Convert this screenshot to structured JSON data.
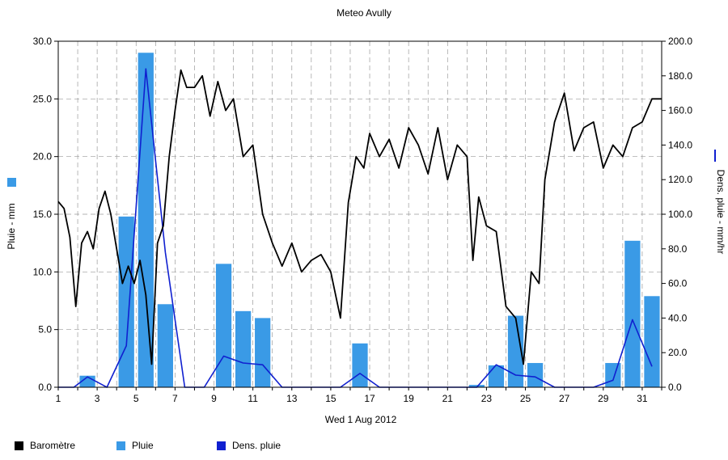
{
  "title": "Meteo  Avully",
  "xlabel": "Wed 1 Aug 2012",
  "ylabel_left": "Pluie - mm",
  "ylabel_right": "Dens. pluie - mm/hr",
  "legend": [
    {
      "label": "Baromètre",
      "color": "#000000"
    },
    {
      "label": "Pluie",
      "color": "#3a9ae6"
    },
    {
      "label": "Dens. pluie",
      "color": "#1020d0"
    }
  ],
  "chart_data": {
    "type": "bar",
    "title": "Meteo  Avully",
    "xlabel": "Wed 1 Aug 2012",
    "x_range": [
      1,
      32
    ],
    "x_ticks": [
      "1",
      "3",
      "5",
      "7",
      "9",
      "11",
      "13",
      "15",
      "17",
      "19",
      "21",
      "23",
      "25",
      "27",
      "29",
      "31"
    ],
    "ylabel_left": "Pluie - mm",
    "ylim_left": [
      0,
      30
    ],
    "yticks_left": [
      "0.0",
      "5.0",
      "10.0",
      "15.0",
      "20.0",
      "25.0",
      "30.0"
    ],
    "ylabel_right": "Dens. pluie - mm/hr",
    "ylim_right": [
      0,
      200
    ],
    "yticks_right": [
      "0.0",
      "20.0",
      "40.0",
      "60.0",
      "80.0",
      "100.0",
      "120.0",
      "140.0",
      "160.0",
      "180.0",
      "200.0"
    ],
    "grid": true,
    "legend_position": "bottom",
    "series": [
      {
        "name": "Pluie",
        "type": "bar",
        "axis": "left",
        "color": "#3a9ae6",
        "x": [
          2.5,
          4.5,
          5.5,
          6.5,
          9.5,
          10.5,
          11.5,
          16.5,
          22.5,
          23.5,
          24.5,
          25.5,
          29.5,
          30.5,
          31.5
        ],
        "values": [
          1.0,
          14.8,
          29.0,
          7.2,
          10.7,
          6.6,
          6.0,
          3.8,
          0.2,
          1.9,
          6.2,
          2.1,
          2.1,
          12.7,
          7.9
        ]
      },
      {
        "name": "Dens. pluie",
        "type": "line",
        "axis": "right",
        "color": "#1020d0",
        "x": [
          1,
          1.8,
          2.5,
          3.5,
          4.5,
          5.5,
          6.5,
          7.5,
          8.5,
          9.5,
          10.5,
          11.5,
          12.5,
          13.5,
          14.5,
          15.5,
          16.5,
          17.5,
          18.5,
          19.5,
          20.5,
          21.5,
          22.5,
          23.5,
          24.5,
          25.5,
          26.5,
          27.5,
          28.5,
          29.5,
          30.5,
          31.5
        ],
        "values": [
          0,
          0,
          6,
          0,
          24,
          184,
          78,
          0,
          0,
          18,
          14,
          13,
          0,
          0,
          0,
          0,
          8,
          0,
          0,
          0,
          0,
          0,
          0,
          13,
          7,
          6,
          0,
          0,
          0,
          4,
          39,
          12
        ]
      },
      {
        "name": "Baromètre",
        "type": "line",
        "axis": "left",
        "color": "#000000",
        "x": [
          1,
          1.3,
          1.6,
          1.9,
          2.2,
          2.5,
          2.8,
          3.1,
          3.4,
          3.7,
          4.0,
          4.3,
          4.6,
          4.9,
          5.2,
          5.5,
          5.8,
          6.1,
          6.4,
          6.7,
          7.0,
          7.3,
          7.6,
          8.0,
          8.4,
          8.8,
          9.2,
          9.6,
          10.0,
          10.5,
          11.0,
          11.5,
          12.0,
          12.5,
          13.0,
          13.5,
          14.0,
          14.5,
          15.0,
          15.5,
          15.9,
          16.3,
          16.7,
          17.0,
          17.5,
          18.0,
          18.5,
          19.0,
          19.5,
          20.0,
          20.5,
          21.0,
          21.5,
          22.0,
          22.3,
          22.6,
          23.0,
          23.5,
          24.0,
          24.5,
          24.9,
          25.3,
          25.7,
          26.0,
          26.5,
          27.0,
          27.5,
          28.0,
          28.5,
          29.0,
          29.5,
          30.0,
          30.5,
          31.0,
          31.5,
          32.0
        ],
        "values": [
          16.1,
          15.5,
          13.0,
          7.0,
          12.5,
          13.5,
          12.0,
          15.5,
          17.0,
          15.0,
          12.0,
          9.0,
          10.5,
          9.0,
          11.0,
          8.0,
          2.0,
          12.5,
          14.0,
          20.0,
          24.0,
          27.5,
          26.0,
          26.0,
          27.0,
          23.5,
          26.5,
          24.0,
          25.0,
          20.0,
          21.0,
          15.0,
          12.5,
          10.5,
          12.5,
          10.0,
          11.0,
          11.5,
          10.0,
          6.0,
          16.0,
          20.0,
          19.0,
          22.0,
          20.0,
          21.5,
          19.0,
          22.5,
          21.0,
          18.5,
          22.5,
          18.0,
          21.0,
          20.0,
          11.0,
          16.5,
          14.0,
          13.5,
          7.0,
          6.0,
          2.0,
          10.0,
          9.0,
          18.0,
          23.0,
          25.5,
          20.5,
          22.5,
          23.0,
          19.0,
          21.0,
          20.0,
          22.5,
          23.0,
          25.0,
          25.0
        ]
      }
    ]
  }
}
